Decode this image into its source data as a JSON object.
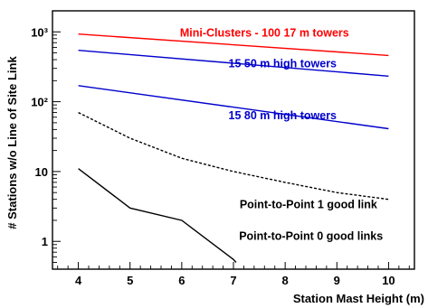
{
  "chart_data": {
    "type": "line",
    "title": "",
    "xlabel": "Station Mast Height (m)",
    "ylabel": "# Stations w/o Line of Site Link",
    "xlim": [
      3.5,
      10.5
    ],
    "ylim": [
      0.4,
      2000
    ],
    "yscale": "log",
    "x_ticks": [
      "4",
      "5",
      "6",
      "7",
      "8",
      "9",
      "10"
    ],
    "y_ticks": [
      {
        "value": 1,
        "label": "1"
      },
      {
        "value": 10,
        "label": "10"
      },
      {
        "value": 100,
        "label": "10²"
      },
      {
        "value": 1000,
        "label": "10³"
      }
    ],
    "grid": false,
    "series": [
      {
        "key": "red",
        "color": "#ff0000",
        "dash": "none",
        "x": [
          4,
          10
        ],
        "y": [
          930,
          460
        ]
      },
      {
        "key": "blue50",
        "color": "#0000cc",
        "dash": "none",
        "x": [
          4,
          10
        ],
        "y": [
          545,
          232
        ]
      },
      {
        "key": "blue80",
        "color": "#0000cc",
        "dash": "none",
        "x": [
          4,
          10
        ],
        "y": [
          170,
          41
        ]
      },
      {
        "key": "dotted",
        "color": "#000000",
        "dash": "3,2",
        "x": [
          4,
          5,
          6,
          7,
          8,
          9,
          10
        ],
        "y": [
          70,
          30,
          15.5,
          10,
          7,
          5,
          4
        ]
      },
      {
        "key": "p2p1",
        "color": "#000000",
        "dash": "none",
        "x": [
          4,
          5,
          6,
          7,
          7.05
        ],
        "y": [
          11,
          3,
          2,
          0.55,
          0.5
        ]
      }
    ],
    "annotations": [
      {
        "text": "Mini-Clusters - 100 17 m towers",
        "color": "#ff0000",
        "x": 7.6,
        "y": 850
      },
      {
        "text": "15 50 m high towers",
        "color": "#0000cc",
        "x": 7.95,
        "y": 310
      },
      {
        "text": "15 80 m high towers",
        "color": "#0000cc",
        "x": 7.95,
        "y": 56
      },
      {
        "text": "Point-to-Point 1 good link",
        "color": "#000000",
        "x": 8.45,
        "y": 3
      },
      {
        "text": "Point-to-Point 0 good links",
        "color": "#000000",
        "x": 8.5,
        "y": 1.05
      }
    ]
  }
}
